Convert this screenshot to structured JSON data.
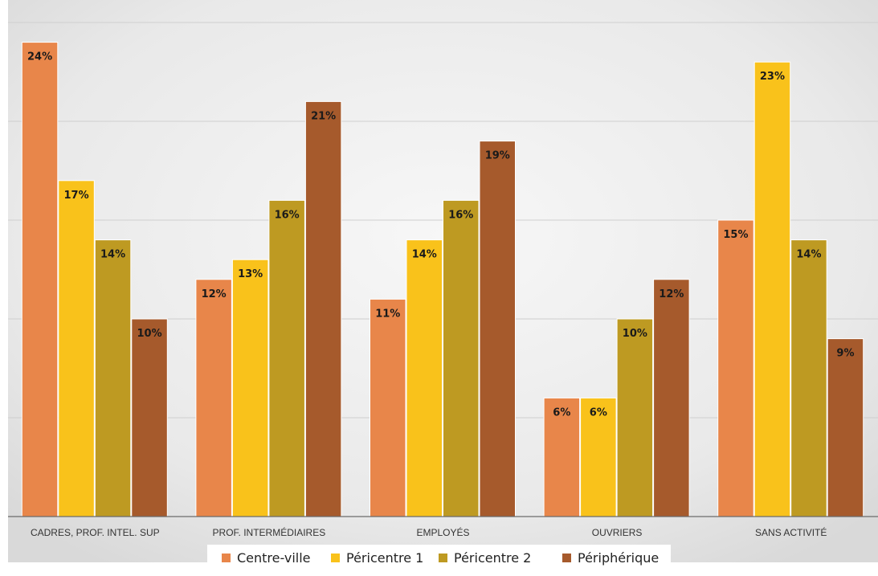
{
  "chart_data": {
    "type": "bar",
    "categories": [
      "CADRES, PROF. INTEL. SUP",
      "PROF. INTERMÉDIAIRES",
      "EMPLOYÉS",
      "OUVRIERS",
      "SANS ACTIVITÉ"
    ],
    "series": [
      {
        "name": "Centre-ville",
        "color": "#E8864A",
        "values": [
          24,
          12,
          11,
          6,
          15
        ],
        "labels": [
          "24%",
          "12%",
          "11%",
          "6%",
          "15%"
        ]
      },
      {
        "name": "Péricentre 1",
        "color": "#F9C21B",
        "values": [
          17,
          13,
          14,
          6,
          23
        ],
        "labels": [
          "17%",
          "13%",
          "14%",
          "6%",
          "23%"
        ]
      },
      {
        "name": "Péricentre 2",
        "color": "#BE9A22",
        "values": [
          14,
          16,
          16,
          10,
          14
        ],
        "labels": [
          "14%",
          "16%",
          "16%",
          "10%",
          "14%"
        ]
      },
      {
        "name": "Périphérique",
        "color": "#A65A2C",
        "values": [
          10,
          21,
          19,
          12,
          9
        ],
        "labels": [
          "10%",
          "21%",
          "19%",
          "12%",
          "9%"
        ]
      }
    ],
    "ylim": [
      0,
      25
    ],
    "grid": true,
    "legend": "bottom"
  }
}
